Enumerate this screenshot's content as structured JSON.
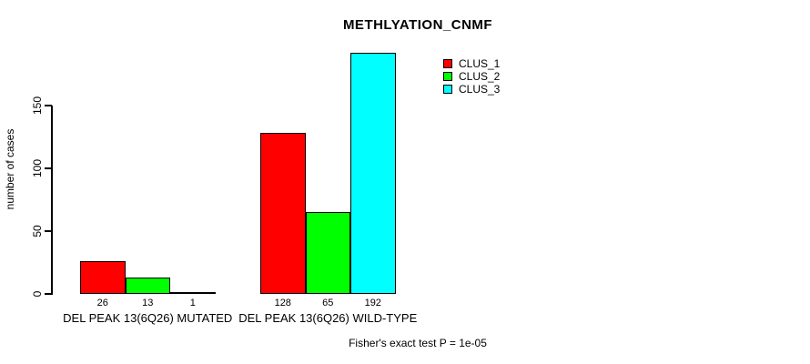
{
  "chart_data": {
    "type": "bar",
    "title": "METHLYATION_CNMF",
    "ylabel": "number of cases",
    "xlabel": "",
    "categories": [
      "DEL PEAK 13(6Q26) MUTATED",
      "DEL PEAK 13(6Q26) WILD-TYPE"
    ],
    "series": [
      {
        "name": "CLUS_1",
        "color": "#FF0000",
        "values": [
          26,
          128
        ]
      },
      {
        "name": "CLUS_2",
        "color": "#00FF00",
        "values": [
          13,
          65
        ]
      },
      {
        "name": "CLUS_3",
        "color": "#00FFFF",
        "values": [
          1,
          192
        ]
      }
    ],
    "yticks": [
      0,
      50,
      100,
      150
    ],
    "ylim": [
      0,
      195
    ],
    "grid": false,
    "legend_position": "top-right",
    "bar_value_labels_shown": true,
    "annotation": "Fisher's exact test P = 1e-05",
    "background_color": "#FFFFFF",
    "text_color": "#000000"
  }
}
